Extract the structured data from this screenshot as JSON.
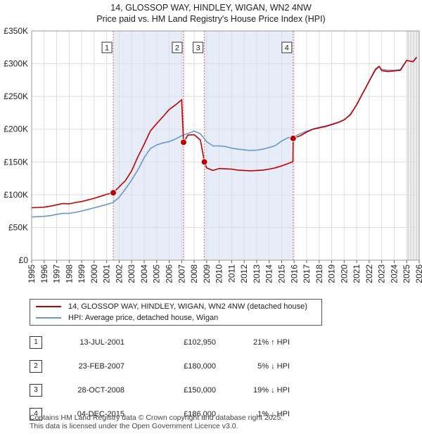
{
  "header": {
    "title_line1": "14, GLOSSOP WAY, HINDLEY, WIGAN, WN2 4NW",
    "title_line2": "Price paid vs. HM Land Registry's House Price Index (HPI)"
  },
  "colors": {
    "property": "#c00000",
    "hpi": "#6a96cc",
    "shade": "#dde6f5",
    "marker_line": "#e06060"
  },
  "chart_data": {
    "type": "line",
    "title": "Price paid vs. HM Land Registry's House Price Index (HPI)",
    "ylabel": "",
    "xlabel": "",
    "xlim": [
      1995,
      2026
    ],
    "ylim": [
      0,
      350000
    ],
    "y_ticks": [
      {
        "value": 0,
        "label": "£0"
      },
      {
        "value": 50000,
        "label": "£50K"
      },
      {
        "value": 100000,
        "label": "£100K"
      },
      {
        "value": 150000,
        "label": "£150K"
      },
      {
        "value": 200000,
        "label": "£200K"
      },
      {
        "value": 250000,
        "label": "£250K"
      },
      {
        "value": 300000,
        "label": "£300K"
      },
      {
        "value": 350000,
        "label": "£350K"
      }
    ],
    "x_ticks": [
      "1995",
      "1996",
      "1997",
      "1998",
      "1999",
      "2000",
      "2001",
      "2002",
      "2003",
      "2004",
      "2005",
      "2006",
      "2007",
      "2008",
      "2009",
      "2010",
      "2011",
      "2012",
      "2013",
      "2014",
      "2015",
      "2016",
      "2017",
      "2018",
      "2019",
      "2020",
      "2021",
      "2022",
      "2023",
      "2024",
      "2025",
      "2026"
    ],
    "grid": true,
    "shaded_periods": [
      [
        2001.53,
        2007.15
      ],
      [
        2008.82,
        2015.92
      ]
    ],
    "forecast_start": 2025.0,
    "series": [
      {
        "name": "14, GLOSSOP WAY, HINDLEY, WIGAN, WN2 4NW (detached house)",
        "color": "#c00000",
        "x": [
          1995.0,
          1995.5,
          1996.0,
          1996.5,
          1997.0,
          1997.5,
          1998.0,
          1998.5,
          1999.0,
          1999.5,
          2000.0,
          2000.5,
          2001.0,
          2001.53,
          2002.0,
          2002.5,
          2003.0,
          2003.5,
          2004.0,
          2004.5,
          2005.0,
          2005.5,
          2006.0,
          2006.5,
          2007.0,
          2007.15,
          2007.5,
          2008.0,
          2008.5,
          2008.82,
          2009.0,
          2009.5,
          2010.0,
          2010.5,
          2011.0,
          2011.5,
          2012.0,
          2012.5,
          2013.0,
          2013.5,
          2014.0,
          2014.5,
          2015.0,
          2015.5,
          2015.9,
          2015.92,
          2016.5,
          2017.0,
          2017.5,
          2018.0,
          2018.5,
          2019.0,
          2019.5,
          2020.0,
          2020.5,
          2021.0,
          2021.5,
          2022.0,
          2022.5,
          2022.8,
          2023.0,
          2023.5,
          2024.0,
          2024.5,
          2025.0,
          2025.5,
          2025.8
        ],
        "y": [
          80000,
          80500,
          81000,
          82500,
          84500,
          86500,
          86000,
          88000,
          89500,
          92000,
          94500,
          97500,
          100500,
          102950,
          112000,
          121500,
          136500,
          158000,
          177000,
          197500,
          208500,
          219000,
          230000,
          237000,
          245000,
          180000,
          191000,
          191500,
          183500,
          150000,
          141000,
          137000,
          140000,
          139500,
          139000,
          137500,
          137000,
          136500,
          137000,
          137500,
          139000,
          141000,
          144000,
          147500,
          150500,
          186000,
          190000,
          195500,
          200000,
          202000,
          204000,
          207000,
          210000,
          214500,
          222000,
          237500,
          255500,
          273500,
          291500,
          296000,
          289500,
          288000,
          289000,
          290000,
          305000,
          303000,
          310000
        ]
      },
      {
        "name": "HPI: Average price, detached house, Wigan",
        "color": "#6a96cc",
        "x": [
          1995.0,
          1995.5,
          1996.0,
          1996.5,
          1997.0,
          1997.5,
          1998.0,
          1998.5,
          1999.0,
          1999.5,
          2000.0,
          2000.5,
          2001.0,
          2001.5,
          2002.0,
          2002.5,
          2003.0,
          2003.5,
          2004.0,
          2004.5,
          2005.0,
          2005.5,
          2006.0,
          2006.5,
          2007.0,
          2007.5,
          2008.0,
          2008.5,
          2009.0,
          2009.5,
          2010.0,
          2010.5,
          2011.0,
          2011.5,
          2012.0,
          2012.5,
          2013.0,
          2013.5,
          2014.0,
          2014.5,
          2015.0,
          2015.5,
          2015.9,
          2016.5,
          2017.0,
          2017.5,
          2018.0,
          2018.5,
          2019.0,
          2019.5,
          2020.0,
          2020.5,
          2021.0,
          2021.5,
          2022.0,
          2022.5,
          2022.8,
          2023.0,
          2023.5,
          2024.0,
          2024.5,
          2025.0,
          2025.5,
          2025.8
        ],
        "y": [
          66000,
          66500,
          67000,
          68000,
          70000,
          71500,
          71500,
          73000,
          75000,
          77500,
          80000,
          82500,
          85000,
          88000,
          96000,
          108500,
          122500,
          138000,
          156500,
          170500,
          176000,
          179000,
          181000,
          185000,
          190000,
          193500,
          197000,
          193000,
          181000,
          174500,
          174500,
          173500,
          171000,
          169500,
          168500,
          167500,
          168000,
          169500,
          172000,
          175000,
          182000,
          187000,
          188000,
          193000,
          197000,
          200000,
          203000,
          205000,
          207500,
          210500,
          214000,
          223000,
          237000,
          255000,
          273000,
          290000,
          295000,
          291500,
          290000,
          290000,
          291000,
          305000,
          303000,
          309000
        ]
      }
    ],
    "sales": [
      {
        "label": "1",
        "x": 2001.53,
        "y": 102950
      },
      {
        "label": "2",
        "x": 2007.15,
        "y": 180000
      },
      {
        "label": "3",
        "x": 2008.82,
        "y": 150000
      },
      {
        "label": "4",
        "x": 2015.92,
        "y": 186000
      }
    ]
  },
  "legend": {
    "property": "14, GLOSSOP WAY, HINDLEY, WIGAN, WN2 4NW (detached house)",
    "hpi": "HPI: Average price, detached house, Wigan"
  },
  "transactions": [
    {
      "num": "1",
      "date": "13-JUL-2001",
      "price": "£102,950",
      "hpi": "21% ↑ HPI"
    },
    {
      "num": "2",
      "date": "23-FEB-2007",
      "price": "£180,000",
      "hpi": "5% ↓ HPI"
    },
    {
      "num": "3",
      "date": "28-OCT-2008",
      "price": "£150,000",
      "hpi": "19% ↓ HPI"
    },
    {
      "num": "4",
      "date": "04-DEC-2015",
      "price": "£186,000",
      "hpi": "1% ↓ HPI"
    }
  ],
  "footer": {
    "line1": "Contains HM Land Registry data © Crown copyright and database right 2025.",
    "line2": "This data is licensed under the Open Government Licence v3.0."
  }
}
